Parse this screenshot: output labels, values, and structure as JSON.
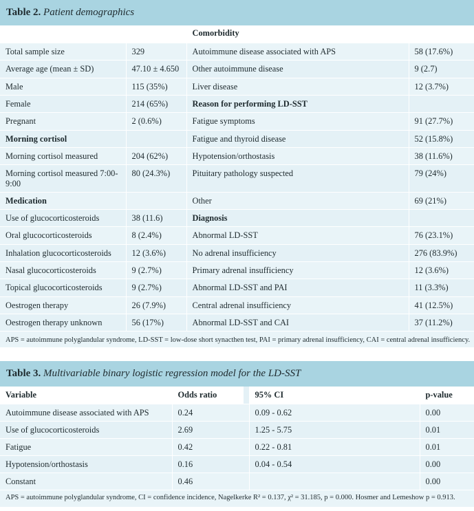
{
  "table2": {
    "label": "Table 2.",
    "caption": "Patient demographics",
    "header": [
      "",
      "",
      "Comorbidity",
      ""
    ],
    "rows": [
      {
        "c1": "Total sample size",
        "c2": "329",
        "c3": "Autoimmune disease associated with APS",
        "c4": "58 (17.6%)",
        "b1": false,
        "b3": false
      },
      {
        "c1": "Average age (mean ± SD)",
        "c2": "47.10 ± 4.650",
        "c3": "Other autoimmune disease",
        "c4": "9 (2.7)",
        "b1": false,
        "b3": false
      },
      {
        "c1": "Male",
        "c2": "115 (35%)",
        "c3": "Liver disease",
        "c4": "12 (3.7%)",
        "b1": false,
        "b3": false
      },
      {
        "c1": "Female",
        "c2": "214 (65%)",
        "c3": "Reason for performing LD-SST",
        "c4": "",
        "b1": false,
        "b3": true
      },
      {
        "c1": "Pregnant",
        "c2": "2 (0.6%)",
        "c3": "Fatigue symptoms",
        "c4": "91 (27.7%)",
        "b1": false,
        "b3": false
      },
      {
        "c1": "Morning cortisol",
        "c2": "",
        "c3": "Fatigue and thyroid disease",
        "c4": "52 (15.8%)",
        "b1": true,
        "b3": false
      },
      {
        "c1": "Morning cortisol measured",
        "c2": "204 (62%)",
        "c3": "Hypotension/orthostasis",
        "c4": "38 (11.6%)",
        "b1": false,
        "b3": false
      },
      {
        "c1": "Morning cortisol measured 7:00-9:00",
        "c2": "80 (24.3%)",
        "c3": "Pituitary pathology suspected",
        "c4": "79 (24%)",
        "b1": false,
        "b3": false
      },
      {
        "c1": "Medication",
        "c2": "",
        "c3": "Other",
        "c4": "69 (21%)",
        "b1": true,
        "b3": false
      },
      {
        "c1": "Use of glucocorticosteroids",
        "c2": "38 (11.6)",
        "c3": "Diagnosis",
        "c4": "",
        "b1": false,
        "b3": true
      },
      {
        "c1": "Oral glucocorticosteroids",
        "c2": "8 (2.4%)",
        "c3": "Abnormal LD-SST",
        "c4": "76 (23.1%)",
        "b1": false,
        "b3": false
      },
      {
        "c1": "Inhalation glucocorticosteroids",
        "c2": "12 (3.6%)",
        "c3": "No adrenal insufficiency",
        "c4": "276 (83.9%)",
        "b1": false,
        "b3": false
      },
      {
        "c1": "Nasal glucocorticosteroids",
        "c2": "9 (2.7%)",
        "c3": "Primary adrenal insufficiency",
        "c4": "12 (3.6%)",
        "b1": false,
        "b3": false
      },
      {
        "c1": "Topical glucocorticosteroids",
        "c2": "9 (2.7%)",
        "c3": "Abnormal LD-SST and PAI",
        "c4": "11 (3.3%)",
        "b1": false,
        "b3": false
      },
      {
        "c1": "Oestrogen therapy",
        "c2": "26 (7.9%)",
        "c3": "Central adrenal insufficiency",
        "c4": "41 (12.5%)",
        "b1": false,
        "b3": false
      },
      {
        "c1": "Oestrogen therapy unknown",
        "c2": "56 (17%)",
        "c3": "Abnormal LD-SST and CAI",
        "c4": "37 (11.2%)",
        "b1": false,
        "b3": false
      }
    ],
    "footnote": "APS = autoimmune polyglandular syndrome, LD-SST = low-dose short synacthen test, PAI = primary adrenal insufficiency, CAI = central adrenal insufficiency."
  },
  "table3": {
    "label": "Table 3.",
    "caption": "Multivariable binary logistic regression model for the LD-SST",
    "header": [
      "Variable",
      "Odds ratio",
      "95% CI",
      "p-value"
    ],
    "rows": [
      {
        "c1": "Autoimmune disease associated with APS",
        "c2": "0.24",
        "c3": "0.09 - 0.62",
        "c4": "0.00"
      },
      {
        "c1": "Use of glucocorticosteroids",
        "c2": "2.69",
        "c3": "1.25 - 5.75",
        "c4": "0.01"
      },
      {
        "c1": "Fatigue",
        "c2": "0.42",
        "c3": "0.22 - 0.81",
        "c4": "0.01"
      },
      {
        "c1": "Hypotension/orthostasis",
        "c2": "0.16",
        "c3": "0.04 - 0.54",
        "c4": "0.00"
      },
      {
        "c1": "Constant",
        "c2": "0.46",
        "c3": "",
        "c4": "0.00"
      }
    ],
    "footnote": "APS = autoimmune polyglandular syndrome, CI = confidence incidence, Nagelkerke R² = 0.137, χ² = 31.185, p = 0.000. Hosmer and Lemeshow p = 0.913."
  }
}
